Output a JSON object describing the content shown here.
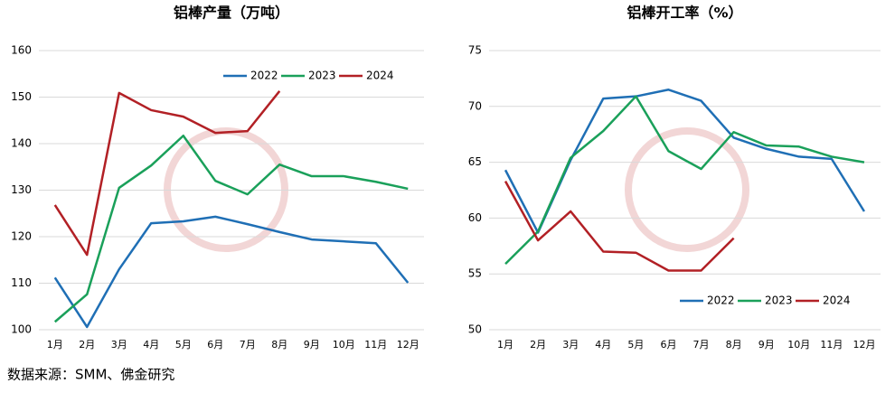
{
  "chart_data": [
    {
      "type": "line",
      "title": "铝棒产量（万吨）",
      "categories": [
        "1月",
        "2月",
        "3月",
        "4月",
        "5月",
        "6月",
        "7月",
        "8月",
        "9月",
        "10月",
        "11月",
        "12月"
      ],
      "series": [
        {
          "name": "2022",
          "color": "#1f6fb5",
          "values": [
            111.2,
            100.6,
            113,
            122.9,
            123.3,
            124.3,
            122.7,
            121,
            119.4,
            119,
            118.6,
            110.1
          ]
        },
        {
          "name": "2023",
          "color": "#1aa05a",
          "values": [
            101.7,
            107.6,
            130.5,
            135.3,
            141.7,
            132,
            129.1,
            135.5,
            133,
            133,
            131.8,
            130.3
          ]
        },
        {
          "name": "2024",
          "color": "#b22025",
          "values": [
            126.8,
            116.1,
            150.9,
            147.2,
            145.8,
            142.3,
            142.7,
            151.3,
            null,
            null,
            null,
            null
          ]
        }
      ],
      "ylim": [
        100,
        160
      ],
      "yticks": [
        100,
        110,
        120,
        130,
        140,
        150,
        160
      ],
      "grid": true,
      "legend": "upper right"
    },
    {
      "type": "line",
      "title": "铝棒开工率（%）",
      "categories": [
        "1月",
        "2月",
        "3月",
        "4月",
        "5月",
        "6月",
        "7月",
        "8月",
        "9月",
        "10月",
        "11月",
        "12月"
      ],
      "series": [
        {
          "name": "2022",
          "color": "#1f6fb5",
          "values": [
            64.3,
            58.7,
            65.2,
            70.7,
            70.9,
            71.5,
            70.5,
            67.2,
            66.2,
            65.5,
            65.3,
            60.6
          ]
        },
        {
          "name": "2023",
          "color": "#1aa05a",
          "values": [
            55.9,
            58.8,
            65.4,
            67.8,
            70.9,
            66,
            64.4,
            67.7,
            66.5,
            66.4,
            65.5,
            65
          ]
        },
        {
          "name": "2024",
          "color": "#b22025",
          "values": [
            63.3,
            58,
            60.6,
            57,
            56.9,
            55.3,
            55.3,
            58.2,
            null,
            null,
            null,
            null
          ]
        }
      ],
      "ylim": [
        50,
        75
      ],
      "yticks": [
        50,
        55,
        60,
        65,
        70,
        75
      ],
      "grid": true,
      "legend": "lower right"
    }
  ],
  "source": "数据来源：SMM、佛金研究"
}
